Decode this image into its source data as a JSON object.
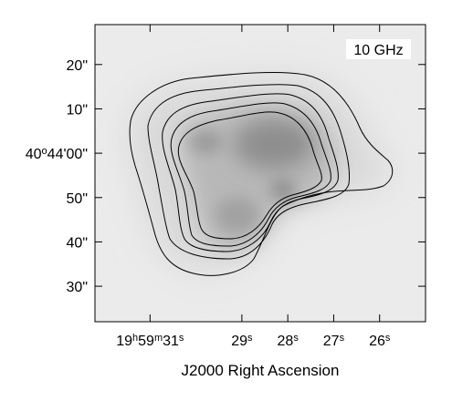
{
  "chart_data": {
    "type": "heatmap",
    "subtype": "radio-map-contour",
    "badge": "10 GHz",
    "xlabel": "J2000 Right Ascension",
    "ylabel": "",
    "x_ticks": [
      {
        "label_parts": [
          [
            "19",
            ""
          ],
          [
            "h",
            "sup"
          ],
          [
            "59",
            ""
          ],
          [
            "m",
            "sup"
          ],
          [
            "31",
            ""
          ],
          [
            "s",
            "sup"
          ]
        ],
        "ra_sec": 31.0
      },
      {
        "label_parts": [
          [
            "29",
            ""
          ],
          [
            "s",
            "sup"
          ]
        ],
        "ra_sec": 29.0
      },
      {
        "label_parts": [
          [
            "28",
            ""
          ],
          [
            "s",
            "sup"
          ]
        ],
        "ra_sec": 28.0
      },
      {
        "label_parts": [
          [
            "27",
            ""
          ],
          [
            "s",
            "sup"
          ]
        ],
        "ra_sec": 27.0
      },
      {
        "label_parts": [
          [
            "26",
            ""
          ],
          [
            "s",
            "sup"
          ]
        ],
        "ra_sec": 26.0
      }
    ],
    "y_ticks": [
      {
        "label_parts": [
          [
            "20\"",
            ""
          ]
        ],
        "dec_arcsec": 20
      },
      {
        "label_parts": [
          [
            "10\"",
            ""
          ]
        ],
        "dec_arcsec": 10
      },
      {
        "label_parts": [
          [
            "40",
            ""
          ],
          [
            "o",
            "sup"
          ],
          [
            "44'00\"",
            ""
          ]
        ],
        "dec_arcsec": 0
      },
      {
        "label_parts": [
          [
            "50\"",
            ""
          ]
        ],
        "dec_arcsec": -10
      },
      {
        "label_parts": [
          [
            "40\"",
            ""
          ]
        ],
        "dec_arcsec": -20
      },
      {
        "label_parts": [
          [
            "30\"",
            ""
          ]
        ],
        "dec_arcsec": -30
      }
    ],
    "xlim_ra_sec": [
      32.2,
      25.0
    ],
    "ylim_dec_arcsec": [
      -38,
      29
    ],
    "contour_levels": 5,
    "colormap": "grayscale",
    "background_color": "#ebebeb",
    "contour_color": "#000000"
  }
}
